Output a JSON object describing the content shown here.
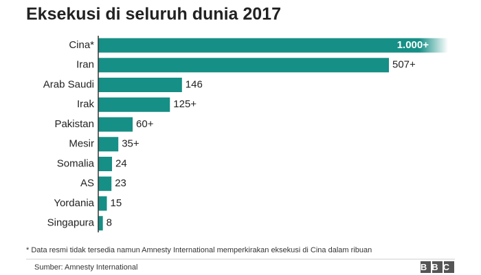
{
  "chart_data": {
    "type": "bar",
    "orientation": "horizontal",
    "title": "Eksekusi di seluruh dunia 2017",
    "categories": [
      "Cina*",
      "Iran",
      "Arab Saudi",
      "Irak",
      "Pakistan",
      "Mesir",
      "Somalia",
      "AS",
      "Yordania",
      "Singapura"
    ],
    "values": [
      1000,
      507,
      146,
      125,
      60,
      35,
      24,
      23,
      15,
      8
    ],
    "value_labels": [
      "1.000+",
      "507+",
      "146",
      "125+",
      "60+",
      "35+",
      "24",
      "23",
      "15",
      "8"
    ],
    "color": "#168f86",
    "footnote": "* Data resmi tidak tersedia namun Amnesty International memperkirakan eksekusi di Cina dalam ribuan",
    "source": "Sumber: Amnesty International",
    "logo": "BBC"
  }
}
